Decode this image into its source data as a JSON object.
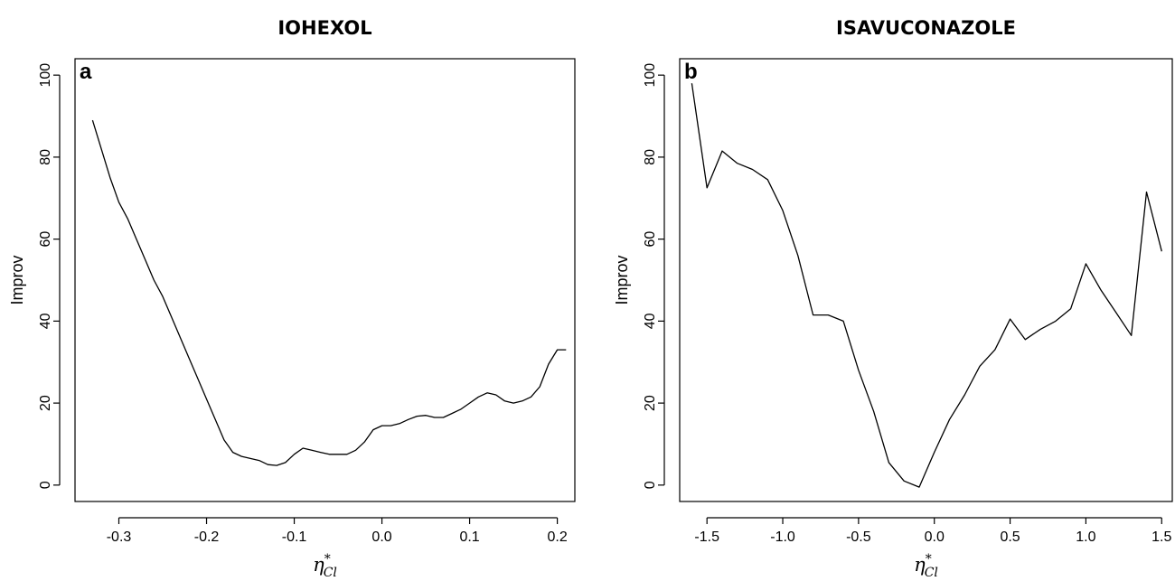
{
  "chart_data": [
    {
      "type": "line",
      "panel_label": "a",
      "title": "IOHEXOL",
      "xlabel_base": "η",
      "xlabel_sup": "*",
      "xlabel_sub": "Cl",
      "ylabel": "Improv",
      "xlim": [
        -0.35,
        0.22
      ],
      "ylim": [
        -4,
        104
      ],
      "x_ticks": [
        -0.3,
        -0.2,
        -0.1,
        0.0,
        0.1,
        0.2
      ],
      "x_tick_labels": [
        "-0.3",
        "-0.2",
        "-0.1",
        "0.0",
        "0.1",
        "0.2"
      ],
      "y_ticks": [
        0,
        20,
        40,
        60,
        80,
        100
      ],
      "y_tick_labels": [
        "0",
        "20",
        "40",
        "60",
        "80",
        "100"
      ],
      "grid": false,
      "series": [
        {
          "x": [
            -0.33,
            -0.32,
            -0.31,
            -0.3,
            -0.29,
            -0.28,
            -0.27,
            -0.26,
            -0.25,
            -0.24,
            -0.23,
            -0.22,
            -0.21,
            -0.2,
            -0.19,
            -0.18,
            -0.17,
            -0.16,
            -0.15,
            -0.14,
            -0.13,
            -0.12,
            -0.11,
            -0.1,
            -0.09,
            -0.08,
            -0.07,
            -0.06,
            -0.05,
            -0.04,
            -0.03,
            -0.02,
            -0.01,
            0.0,
            0.01,
            0.02,
            0.03,
            0.04,
            0.05,
            0.06,
            0.07,
            0.08,
            0.09,
            0.1,
            0.11,
            0.12,
            0.13,
            0.14,
            0.15,
            0.16,
            0.17,
            0.18,
            0.19,
            0.2,
            0.21
          ],
          "y": [
            89,
            82,
            75,
            69,
            65,
            60,
            55,
            50,
            46,
            41,
            36,
            31,
            26,
            21,
            16,
            11,
            8,
            7,
            6.5,
            6,
            5,
            4.8,
            5.5,
            7.5,
            9,
            8.5,
            8,
            7.5,
            7.5,
            7.5,
            8.5,
            10.5,
            13.5,
            14.5,
            14.5,
            15,
            16,
            16.8,
            17,
            16.5,
            16.5,
            17.5,
            18.5,
            20,
            21.5,
            22.5,
            22,
            20.5,
            20,
            20.5,
            21.5,
            24,
            29.5,
            33,
            33
          ]
        }
      ]
    },
    {
      "type": "line",
      "panel_label": "b",
      "title": "ISAVUCONAZOLE",
      "xlabel_base": "η",
      "xlabel_sup": "*",
      "xlabel_sub": "Cl",
      "ylabel": "Improv",
      "xlim": [
        -1.68,
        1.57
      ],
      "ylim": [
        -4,
        104
      ],
      "x_ticks": [
        -1.5,
        -1.0,
        -0.5,
        0.0,
        0.5,
        1.0,
        1.5
      ],
      "x_tick_labels": [
        "-1.5",
        "-1.0",
        "-0.5",
        "0.0",
        "0.5",
        "1.0",
        "1.5"
      ],
      "y_ticks": [
        0,
        20,
        40,
        60,
        80,
        100
      ],
      "y_tick_labels": [
        "0",
        "20",
        "40",
        "60",
        "80",
        "100"
      ],
      "grid": false,
      "series": [
        {
          "x": [
            -1.6,
            -1.5,
            -1.4,
            -1.3,
            -1.2,
            -1.1,
            -1.0,
            -0.9,
            -0.8,
            -0.7,
            -0.6,
            -0.5,
            -0.4,
            -0.3,
            -0.2,
            -0.1,
            0.0,
            0.1,
            0.2,
            0.3,
            0.4,
            0.5,
            0.6,
            0.7,
            0.8,
            0.9,
            1.0,
            1.1,
            1.2,
            1.3,
            1.4,
            1.5
          ],
          "y": [
            98,
            72.5,
            81.5,
            78.5,
            77,
            74.5,
            67,
            56,
            41.5,
            41.5,
            40,
            28,
            18,
            5.5,
            1,
            -0.5,
            8,
            16,
            22,
            29,
            33,
            40.5,
            35.5,
            38,
            40,
            43,
            54,
            47.5,
            42,
            36.5,
            71.5,
            57
          ]
        }
      ]
    }
  ]
}
